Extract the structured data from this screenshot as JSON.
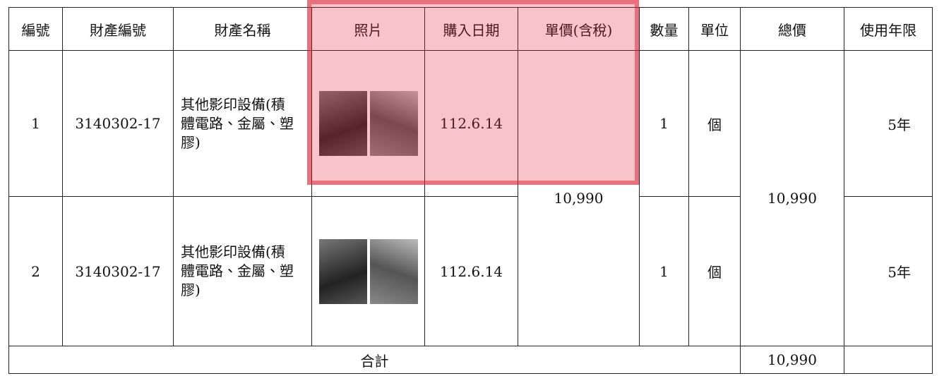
{
  "table": {
    "headers": [
      "編號",
      "財產編號",
      "財產名稱",
      "照片",
      "購入日期",
      "單價(含稅)",
      "數量",
      "單位",
      "總價",
      "使用年限"
    ],
    "rows": [
      {
        "no": "1",
        "code": "3140302-17",
        "name": "其他影印設備(積體電路、金屬、塑膠)",
        "date": "112.6.14",
        "qty": "1",
        "unit": "個",
        "life": "5年"
      },
      {
        "no": "2",
        "code": "3140302-17",
        "name": "其他影印設備(積體電路、金屬、塑膠)",
        "date": "112.6.14",
        "qty": "1",
        "unit": "個",
        "life": "5年"
      }
    ],
    "unit_price": "10,990",
    "total_price": "10,990",
    "total_label": "合計",
    "total_sum": "10,990"
  }
}
